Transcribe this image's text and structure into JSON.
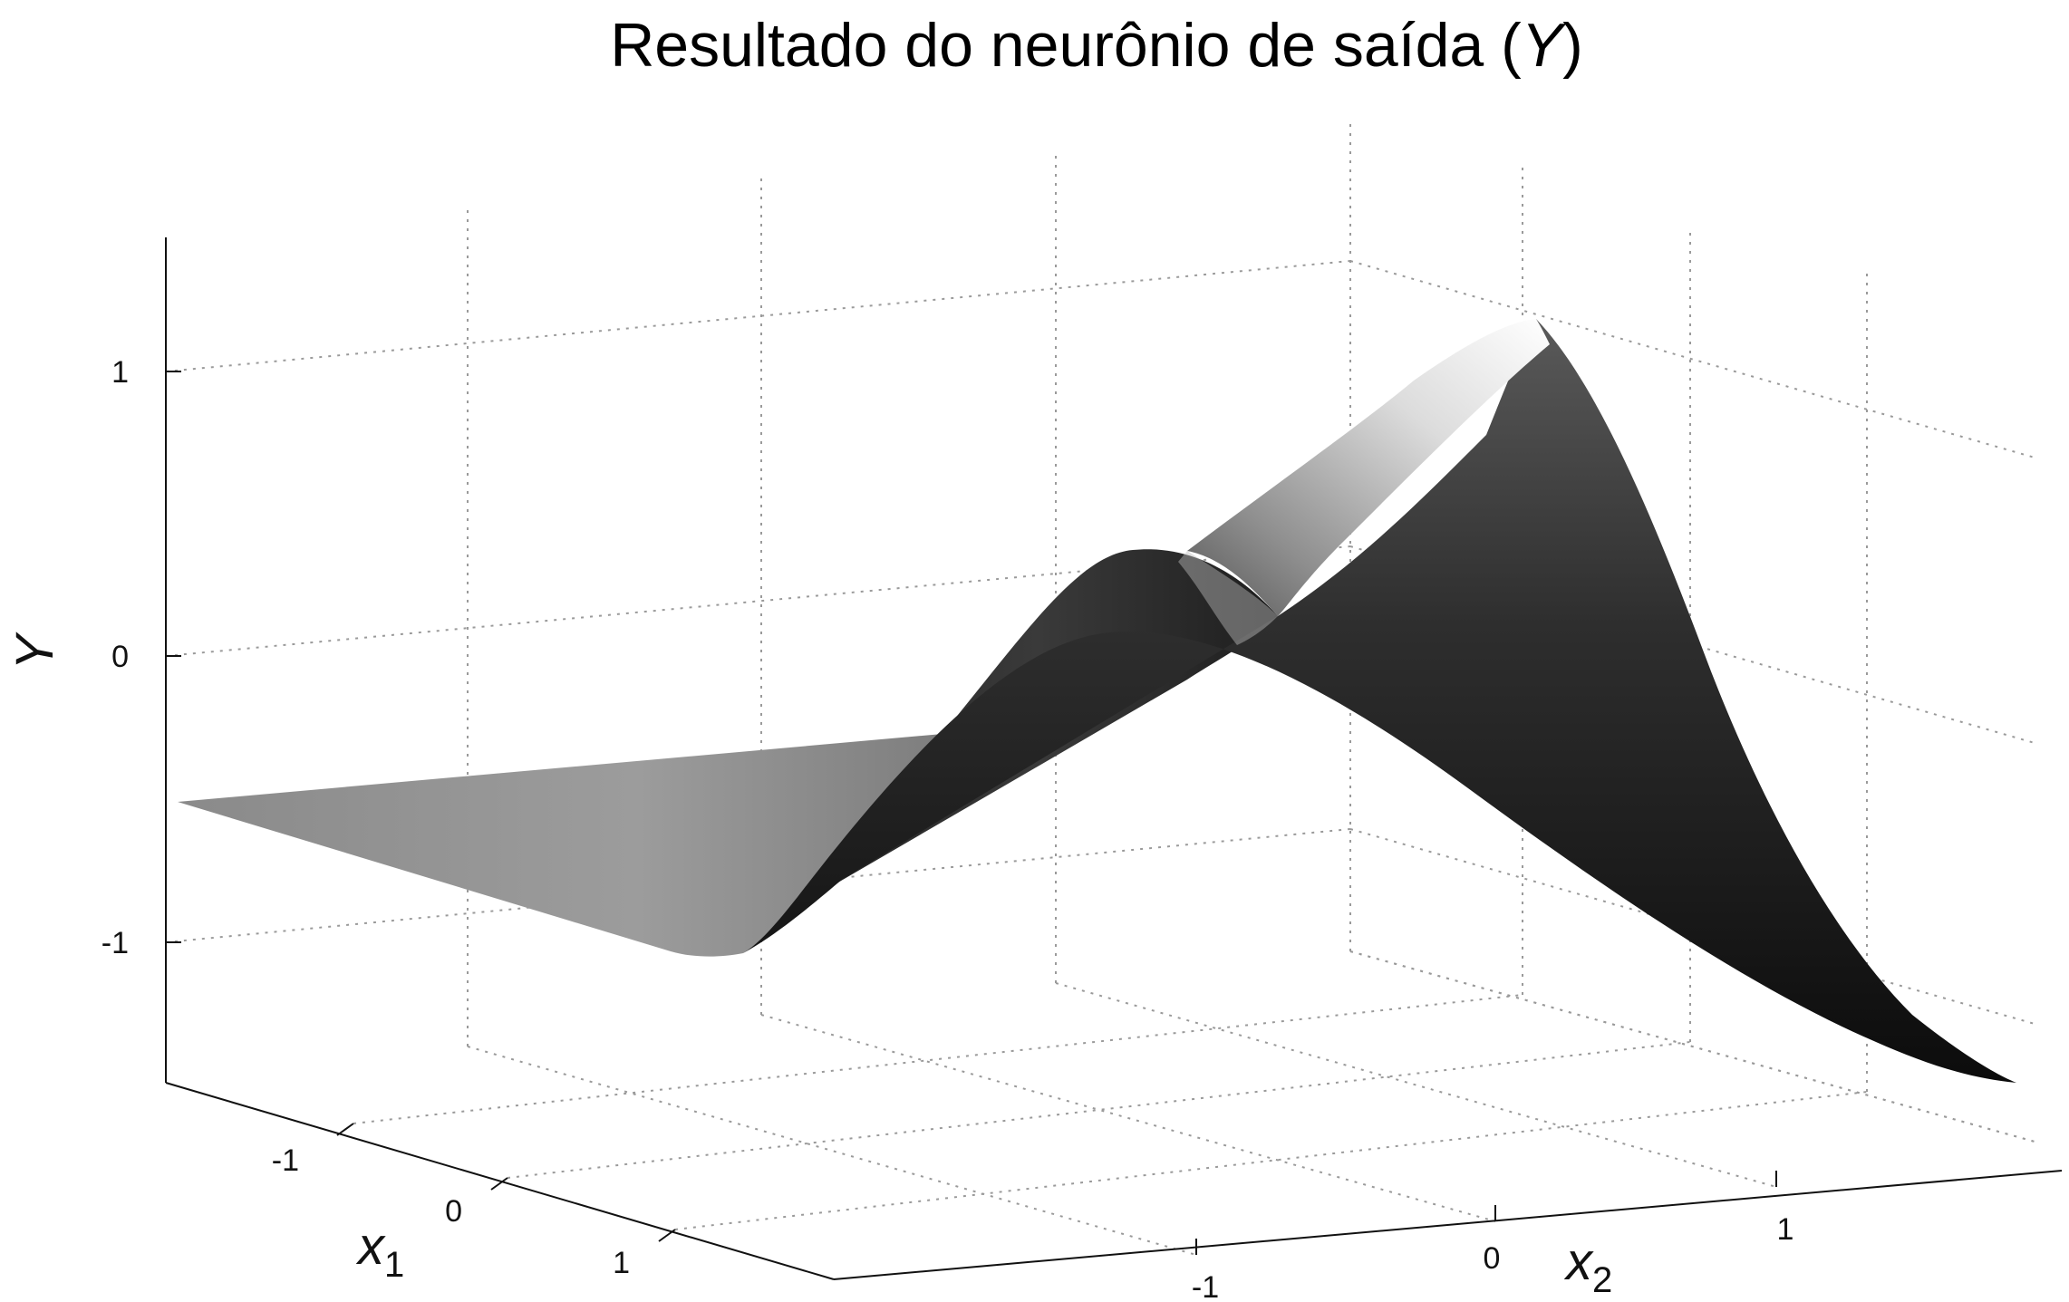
{
  "chart_data": {
    "type": "surface",
    "title_text": "Resultado do neurônio de saída (",
    "title_var": "Y",
    "title_close": ")",
    "xlabel_var": "x",
    "xlabel_sub": "1",
    "ylabel_var": "x",
    "ylabel_sub": "2",
    "zlabel": "Y",
    "x1_ticks": [
      "-1",
      "0",
      "1"
    ],
    "x2_ticks": [
      "-1",
      "0",
      "1"
    ],
    "z_ticks": [
      "-1",
      "0",
      "1"
    ],
    "x1_range": [
      -1.8,
      1.8
    ],
    "x2_range": [
      -1.8,
      1.8
    ],
    "z_range": [
      -1.5,
      1.5
    ],
    "grid": true,
    "surface_profile": {
      "x2": [
        -1.8,
        -1.5,
        -1.2,
        -0.9,
        -0.6,
        -0.3,
        0.0,
        0.3,
        0.6,
        0.9,
        1.2,
        1.5,
        1.8
      ],
      "Y_at_x1_min": [
        -0.52,
        -0.52,
        -0.51,
        -0.45,
        -0.28,
        -0.02,
        0.27,
        0.46,
        0.45,
        0.25,
        0.0,
        -0.22,
        -0.35
      ],
      "Y_at_x1_max": [
        -1.0,
        -1.0,
        -0.99,
        -0.9,
        -0.6,
        -0.1,
        0.55,
        1.05,
        1.15,
        0.75,
        0.15,
        -0.55,
        -1.02
      ]
    },
    "colors": {
      "shade_dark": "#141414",
      "shade_mid": "#808080",
      "shade_light": "#ffffff"
    }
  }
}
